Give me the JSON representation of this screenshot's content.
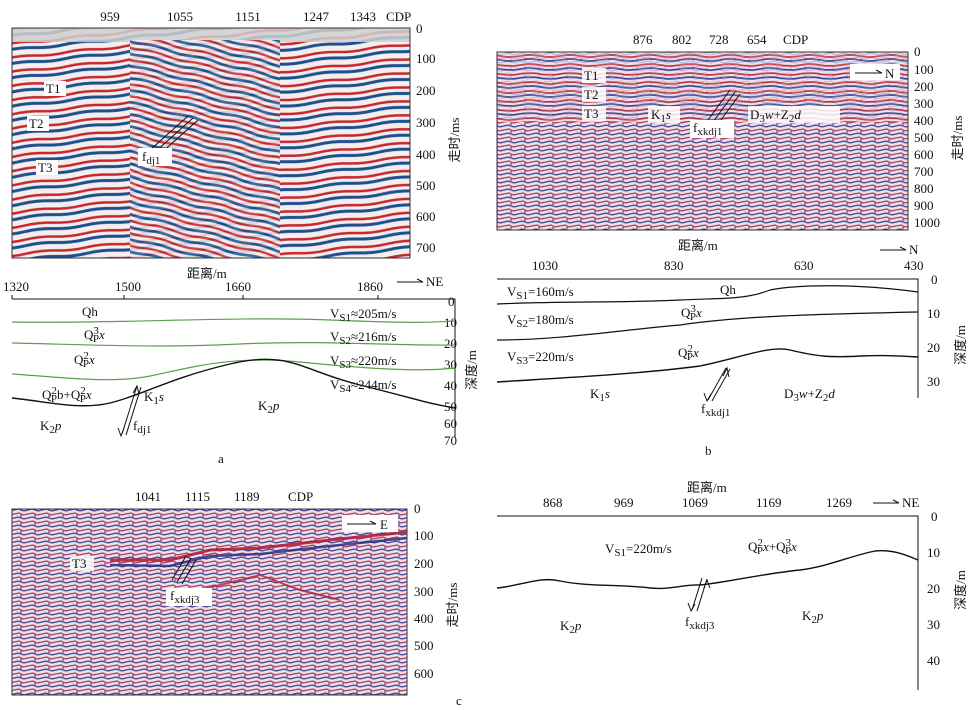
{
  "colors": {
    "seis_red": "#c8262e",
    "seis_blue": "#1d4f8f",
    "green_line": "#5a9f4a",
    "ink": "#111111"
  },
  "panel_a_seismic": {
    "cdp_ticks": [
      "959",
      "1055",
      "1151",
      "1247",
      "1343"
    ],
    "cdp_label": "CDP",
    "time_ticks": [
      "0",
      "100",
      "200",
      "300",
      "400",
      "500",
      "600",
      "700"
    ],
    "time_axis_label": "走时/ms",
    "horizons": [
      "T1",
      "T2",
      "T3"
    ],
    "fault": "dj1"
  },
  "panel_a_section": {
    "distance_label": "距离/m",
    "direction": "NE",
    "distance_ticks": [
      "1320",
      "1500",
      "1660",
      "1860"
    ],
    "depth_ticks": [
      "0",
      "10",
      "20",
      "30",
      "40",
      "50",
      "60",
      "70"
    ],
    "depth_axis_label": "深度/m",
    "velocities": [
      "≈205m/s",
      "≈216m/s",
      "≈220m/s",
      "≈244m/s"
    ],
    "fault": "dj1",
    "caption": "a"
  },
  "panel_b_seismic": {
    "cdp_ticks": [
      "876",
      "802",
      "728",
      "654"
    ],
    "cdp_label": "CDP",
    "direction": "N",
    "time_ticks": [
      "0",
      "100",
      "200",
      "300",
      "400",
      "500",
      "600",
      "700",
      "800",
      "900",
      "1000"
    ],
    "time_axis_label": "走时/ms",
    "horizons": [
      "T1",
      "T2",
      "T3"
    ],
    "fault": "xkdj1"
  },
  "panel_b_section": {
    "distance_label": "距离/m",
    "direction": "N",
    "distance_ticks": [
      "1030",
      "830",
      "630",
      "430"
    ],
    "depth_ticks": [
      "0",
      "10",
      "20",
      "30"
    ],
    "depth_axis_label": "深度/m",
    "velocities": [
      "=160m/s",
      "=180m/s",
      "=220m/s"
    ],
    "fault": "xkdj1",
    "caption": "b"
  },
  "panel_c_seismic": {
    "cdp_ticks": [
      "1041",
      "1115",
      "1189"
    ],
    "cdp_label": "CDP",
    "direction": "E",
    "time_ticks": [
      "0",
      "100",
      "200",
      "300",
      "400",
      "500",
      "600"
    ],
    "time_axis_label": "走时/ms",
    "horizon": "T3",
    "fault": "xkdj3"
  },
  "panel_c_section": {
    "distance_label": "距离/m",
    "direction": "NE",
    "distance_ticks": [
      "868",
      "969",
      "1069",
      "1169",
      "1269"
    ],
    "depth_ticks": [
      "0",
      "10",
      "20",
      "30",
      "40"
    ],
    "depth_axis_label": "深度/m",
    "velocity": "=220m/s",
    "fault": "xkdj3",
    "caption": "c"
  }
}
